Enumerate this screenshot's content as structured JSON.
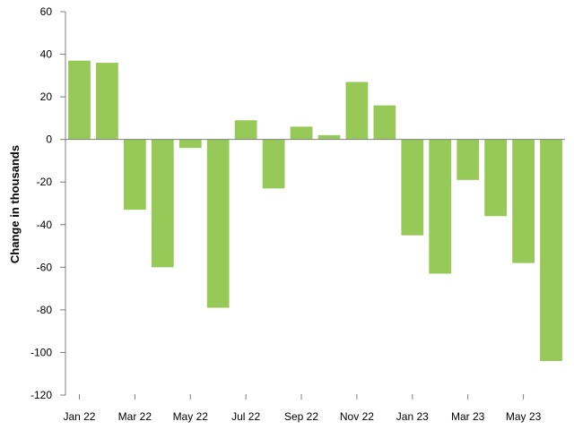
{
  "chart_data": {
    "type": "bar",
    "title": "",
    "xlabel": "",
    "ylabel": "Change in thousands",
    "ylim": [
      -120,
      60
    ],
    "yticks": [
      60,
      40,
      20,
      0,
      -20,
      -40,
      -60,
      -80,
      -100,
      -120
    ],
    "ytick_labels": [
      "60",
      "40",
      "20",
      "0",
      "-20",
      "-40",
      "-60",
      "-80",
      "-100",
      "-120"
    ],
    "categories": [
      "Jan 22",
      "Feb 22",
      "Mar 22",
      "Apr 22",
      "May 22",
      "Jun 22",
      "Jul 22",
      "Aug 22",
      "Sep 22",
      "Oct 22",
      "Nov 22",
      "Dec 22",
      "Jan 23",
      "Feb 23",
      "Mar 23",
      "Apr 23",
      "May 23",
      "Jun 23"
    ],
    "xtick_labels": [
      "Jan 22",
      "Mar 22",
      "May 22",
      "Jul 22",
      "Sep 22",
      "Nov 22",
      "Jan 23",
      "Mar 23",
      "May 23"
    ],
    "values": [
      37,
      36,
      -33,
      -60,
      -4,
      -79,
      9,
      -23,
      6,
      2,
      27,
      16,
      -45,
      -63,
      -19,
      -36,
      -58,
      -104
    ],
    "grid": false,
    "legend": "none",
    "bar_color": "#96c957",
    "axis_color": "#7f7f7f"
  }
}
